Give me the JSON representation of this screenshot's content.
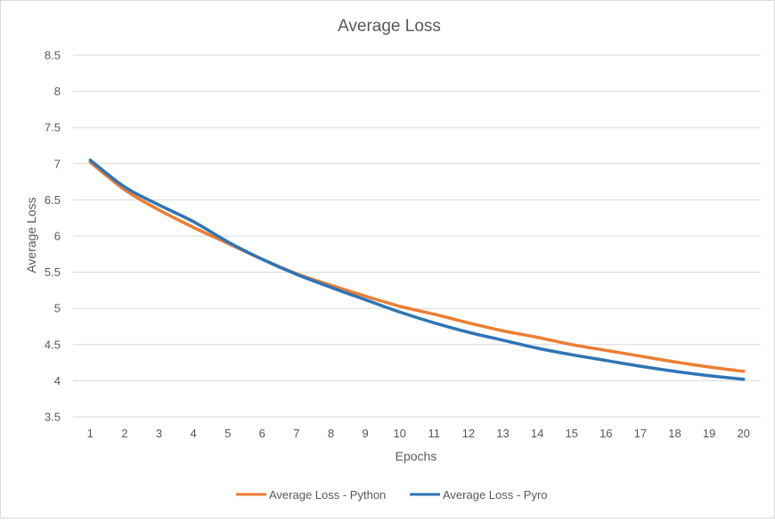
{
  "chart_data": {
    "type": "line",
    "title": "Average Loss",
    "xlabel": "Epochs",
    "ylabel": "Average Loss",
    "categories": [
      "1",
      "2",
      "3",
      "4",
      "5",
      "6",
      "7",
      "8",
      "9",
      "10",
      "11",
      "12",
      "13",
      "14",
      "15",
      "16",
      "17",
      "18",
      "19",
      "20"
    ],
    "ylim": [
      3.5,
      8.5
    ],
    "yticks": [
      "3.5",
      "4",
      "4.5",
      "5",
      "5.5",
      "6",
      "6.5",
      "7",
      "7.5",
      "8",
      "8.5"
    ],
    "grid": true,
    "legend_position": "bottom",
    "series": [
      {
        "name": "Average Loss - Python",
        "color": "#ED7D31",
        "values": [
          7.02,
          6.64,
          6.36,
          6.12,
          5.9,
          5.68,
          5.48,
          5.32,
          5.17,
          5.03,
          4.92,
          4.8,
          4.69,
          4.6,
          4.5,
          4.42,
          4.34,
          4.26,
          4.19,
          4.13
        ]
      },
      {
        "name": "Average Loss - Pyro",
        "color": "#2E75B6",
        "values": [
          7.05,
          6.68,
          6.43,
          6.2,
          5.92,
          5.68,
          5.47,
          5.29,
          5.12,
          4.95,
          4.8,
          4.67,
          4.56,
          4.45,
          4.36,
          4.28,
          4.2,
          4.13,
          4.07,
          4.02
        ]
      }
    ]
  }
}
